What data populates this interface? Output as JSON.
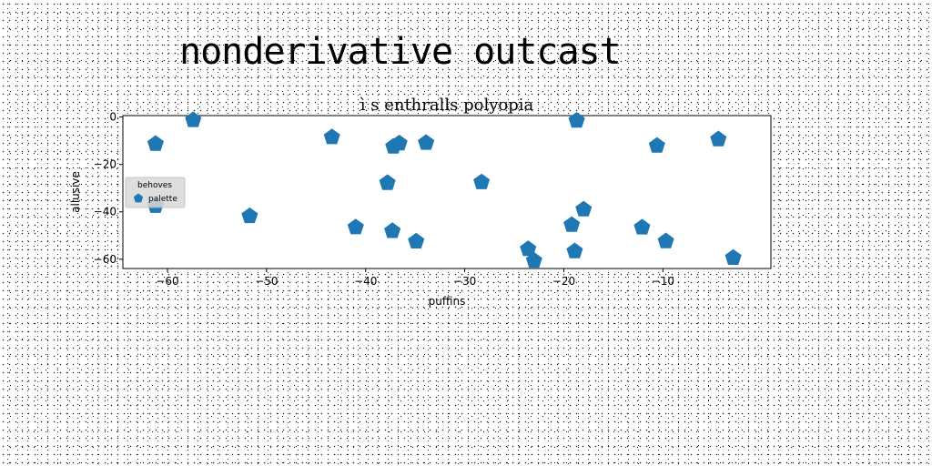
{
  "figure": {
    "title": "nonderivative outcast"
  },
  "chart_data": {
    "type": "scatter",
    "title": "ì s enthralls polyopia",
    "xlabel": "puffins",
    "ylabel": "allusive",
    "xlim": [
      -64.5,
      0.9
    ],
    "ylim": [
      -63.9,
      0.6
    ],
    "xticks": [
      -60,
      -50,
      -40,
      -30,
      -20,
      -10
    ],
    "yticks": [
      0,
      -20,
      -40,
      -60
    ],
    "grid": false,
    "marker": "pentagon",
    "color": "#1f77b4",
    "legend": {
      "title": "behoves",
      "placement": "center-left"
    },
    "series": [
      {
        "name": "palette",
        "points": [
          [
            -57.4,
            -1.3
          ],
          [
            -18.7,
            -1.5
          ],
          [
            -61.2,
            -11.3
          ],
          [
            -43.4,
            -8.5
          ],
          [
            -37.2,
            -12.5
          ],
          [
            -36.6,
            -11.1
          ],
          [
            -33.9,
            -10.9
          ],
          [
            -10.6,
            -12.1
          ],
          [
            -4.4,
            -9.4
          ],
          [
            -37.8,
            -27.8
          ],
          [
            -28.3,
            -27.5
          ],
          [
            -61.2,
            -37.5
          ],
          [
            -51.7,
            -41.8
          ],
          [
            -41.0,
            -46.5
          ],
          [
            -37.3,
            -48.1
          ],
          [
            -34.9,
            -52.5
          ],
          [
            -19.2,
            -45.5
          ],
          [
            -18.0,
            -39.0
          ],
          [
            -12.1,
            -46.6
          ],
          [
            -9.7,
            -52.4
          ],
          [
            -23.6,
            -55.7
          ],
          [
            -18.9,
            -56.6
          ],
          [
            -23.0,
            -60.6
          ],
          [
            -2.9,
            -59.4
          ]
        ]
      }
    ]
  }
}
